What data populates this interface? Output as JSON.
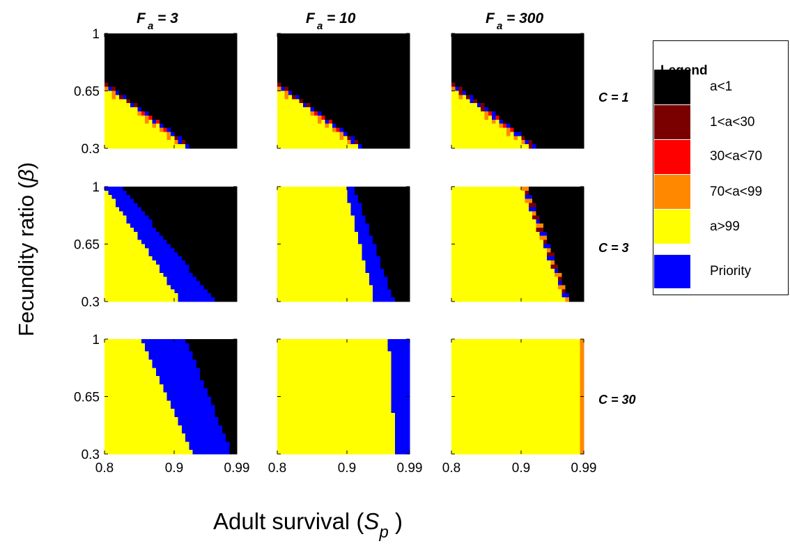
{
  "figure": {
    "y_axis_title_main": "Fecundity ratio (",
    "y_axis_title_symbol": "β",
    "y_axis_title_close": ")",
    "x_axis_title_main": "Adult survival (",
    "x_axis_title_symbol": "S",
    "x_axis_title_sub": "p",
    "x_axis_title_close": " )"
  },
  "columns": [
    {
      "label": "F",
      "sub": "a",
      "value": "= 3"
    },
    {
      "label": "F",
      "sub": "a",
      "value": "= 10"
    },
    {
      "label": "F",
      "sub": "a",
      "value": "= 300"
    }
  ],
  "rows": [
    {
      "label": "C = 1"
    },
    {
      "label": "C = 3"
    },
    {
      "label": "C = 30"
    }
  ],
  "legend": {
    "title": "Legend",
    "items": [
      {
        "label": "a<1",
        "color": "#000000"
      },
      {
        "label": "1<a<30",
        "color": "#7a0000"
      },
      {
        "label": "30<a<70",
        "color": "#ff0000"
      },
      {
        "label": "70<a<99",
        "color": "#ff8800"
      },
      {
        "label": "a>99",
        "color": "#ffff00"
      },
      {
        "label": "Priority",
        "color": "#0000ff"
      }
    ]
  },
  "chart_data": {
    "type": "heatmap",
    "x_ticks": [
      "0.8",
      "0.9",
      "0.99"
    ],
    "y_ticks": [
      "0.3",
      "0.65",
      "1"
    ],
    "xlim": [
      0.8,
      0.99
    ],
    "ylim": [
      0.3,
      1
    ],
    "panels": [
      {
        "row": "C = 1",
        "col": "F_a = 3",
        "y_top_boundary": [
          0.68,
          0.3
        ],
        "x_range_top": [
          0.8,
          0.92
        ],
        "priority_band": 0.008,
        "edge": "mixed"
      },
      {
        "row": "C = 1",
        "col": "F_a = 10",
        "y_top_boundary": [
          0.68,
          0.3
        ],
        "x_range_top": [
          0.8,
          0.92
        ],
        "priority_band": 0.008,
        "edge": "mixed"
      },
      {
        "row": "C = 1",
        "col": "F_a = 300",
        "y_top_boundary": [
          0.68,
          0.3
        ],
        "x_range_top": [
          0.8,
          0.917
        ],
        "priority_band": 0.008,
        "edge": "mixed"
      },
      {
        "row": "C = 3",
        "col": "F_a = 3",
        "yellow_x_at_top": 0.8,
        "yellow_x_at_bottom": 0.91,
        "black_x_at_top": 0.825,
        "black_x_at_bottom": 0.96,
        "edge": "blue"
      },
      {
        "row": "C = 3",
        "col": "F_a = 10",
        "yellow_x_at_top": 0.897,
        "yellow_x_at_bottom": 0.94,
        "black_x_at_top": 0.91,
        "black_x_at_bottom": 0.968,
        "edge": "blue"
      },
      {
        "row": "C = 3",
        "col": "F_a = 300",
        "yellow_x_at_top": 0.9,
        "yellow_x_at_bottom": 0.963,
        "black_x_at_top": 0.91,
        "black_x_at_bottom": 0.97,
        "edge": "mixed"
      },
      {
        "row": "C = 30",
        "col": "F_a = 3",
        "yellow_x_at_top": 0.853,
        "yellow_x_at_bottom": 0.928,
        "black_x_at_top": 0.917,
        "black_x_at_bottom": 0.983,
        "edge": "blue"
      },
      {
        "row": "C = 30",
        "col": "F_a = 10",
        "yellow_x_at_top": 0.96,
        "yellow_x_at_bottom": 0.97,
        "black_x_at_top": 0.99,
        "black_x_at_bottom": 0.99,
        "edge": "blue"
      },
      {
        "row": "C = 30",
        "col": "F_a = 300",
        "yellow_x_at_top": 0.987,
        "yellow_x_at_bottom": 0.987,
        "black_x_at_top": 0.99,
        "black_x_at_bottom": 0.99,
        "edge": "orange"
      }
    ]
  }
}
